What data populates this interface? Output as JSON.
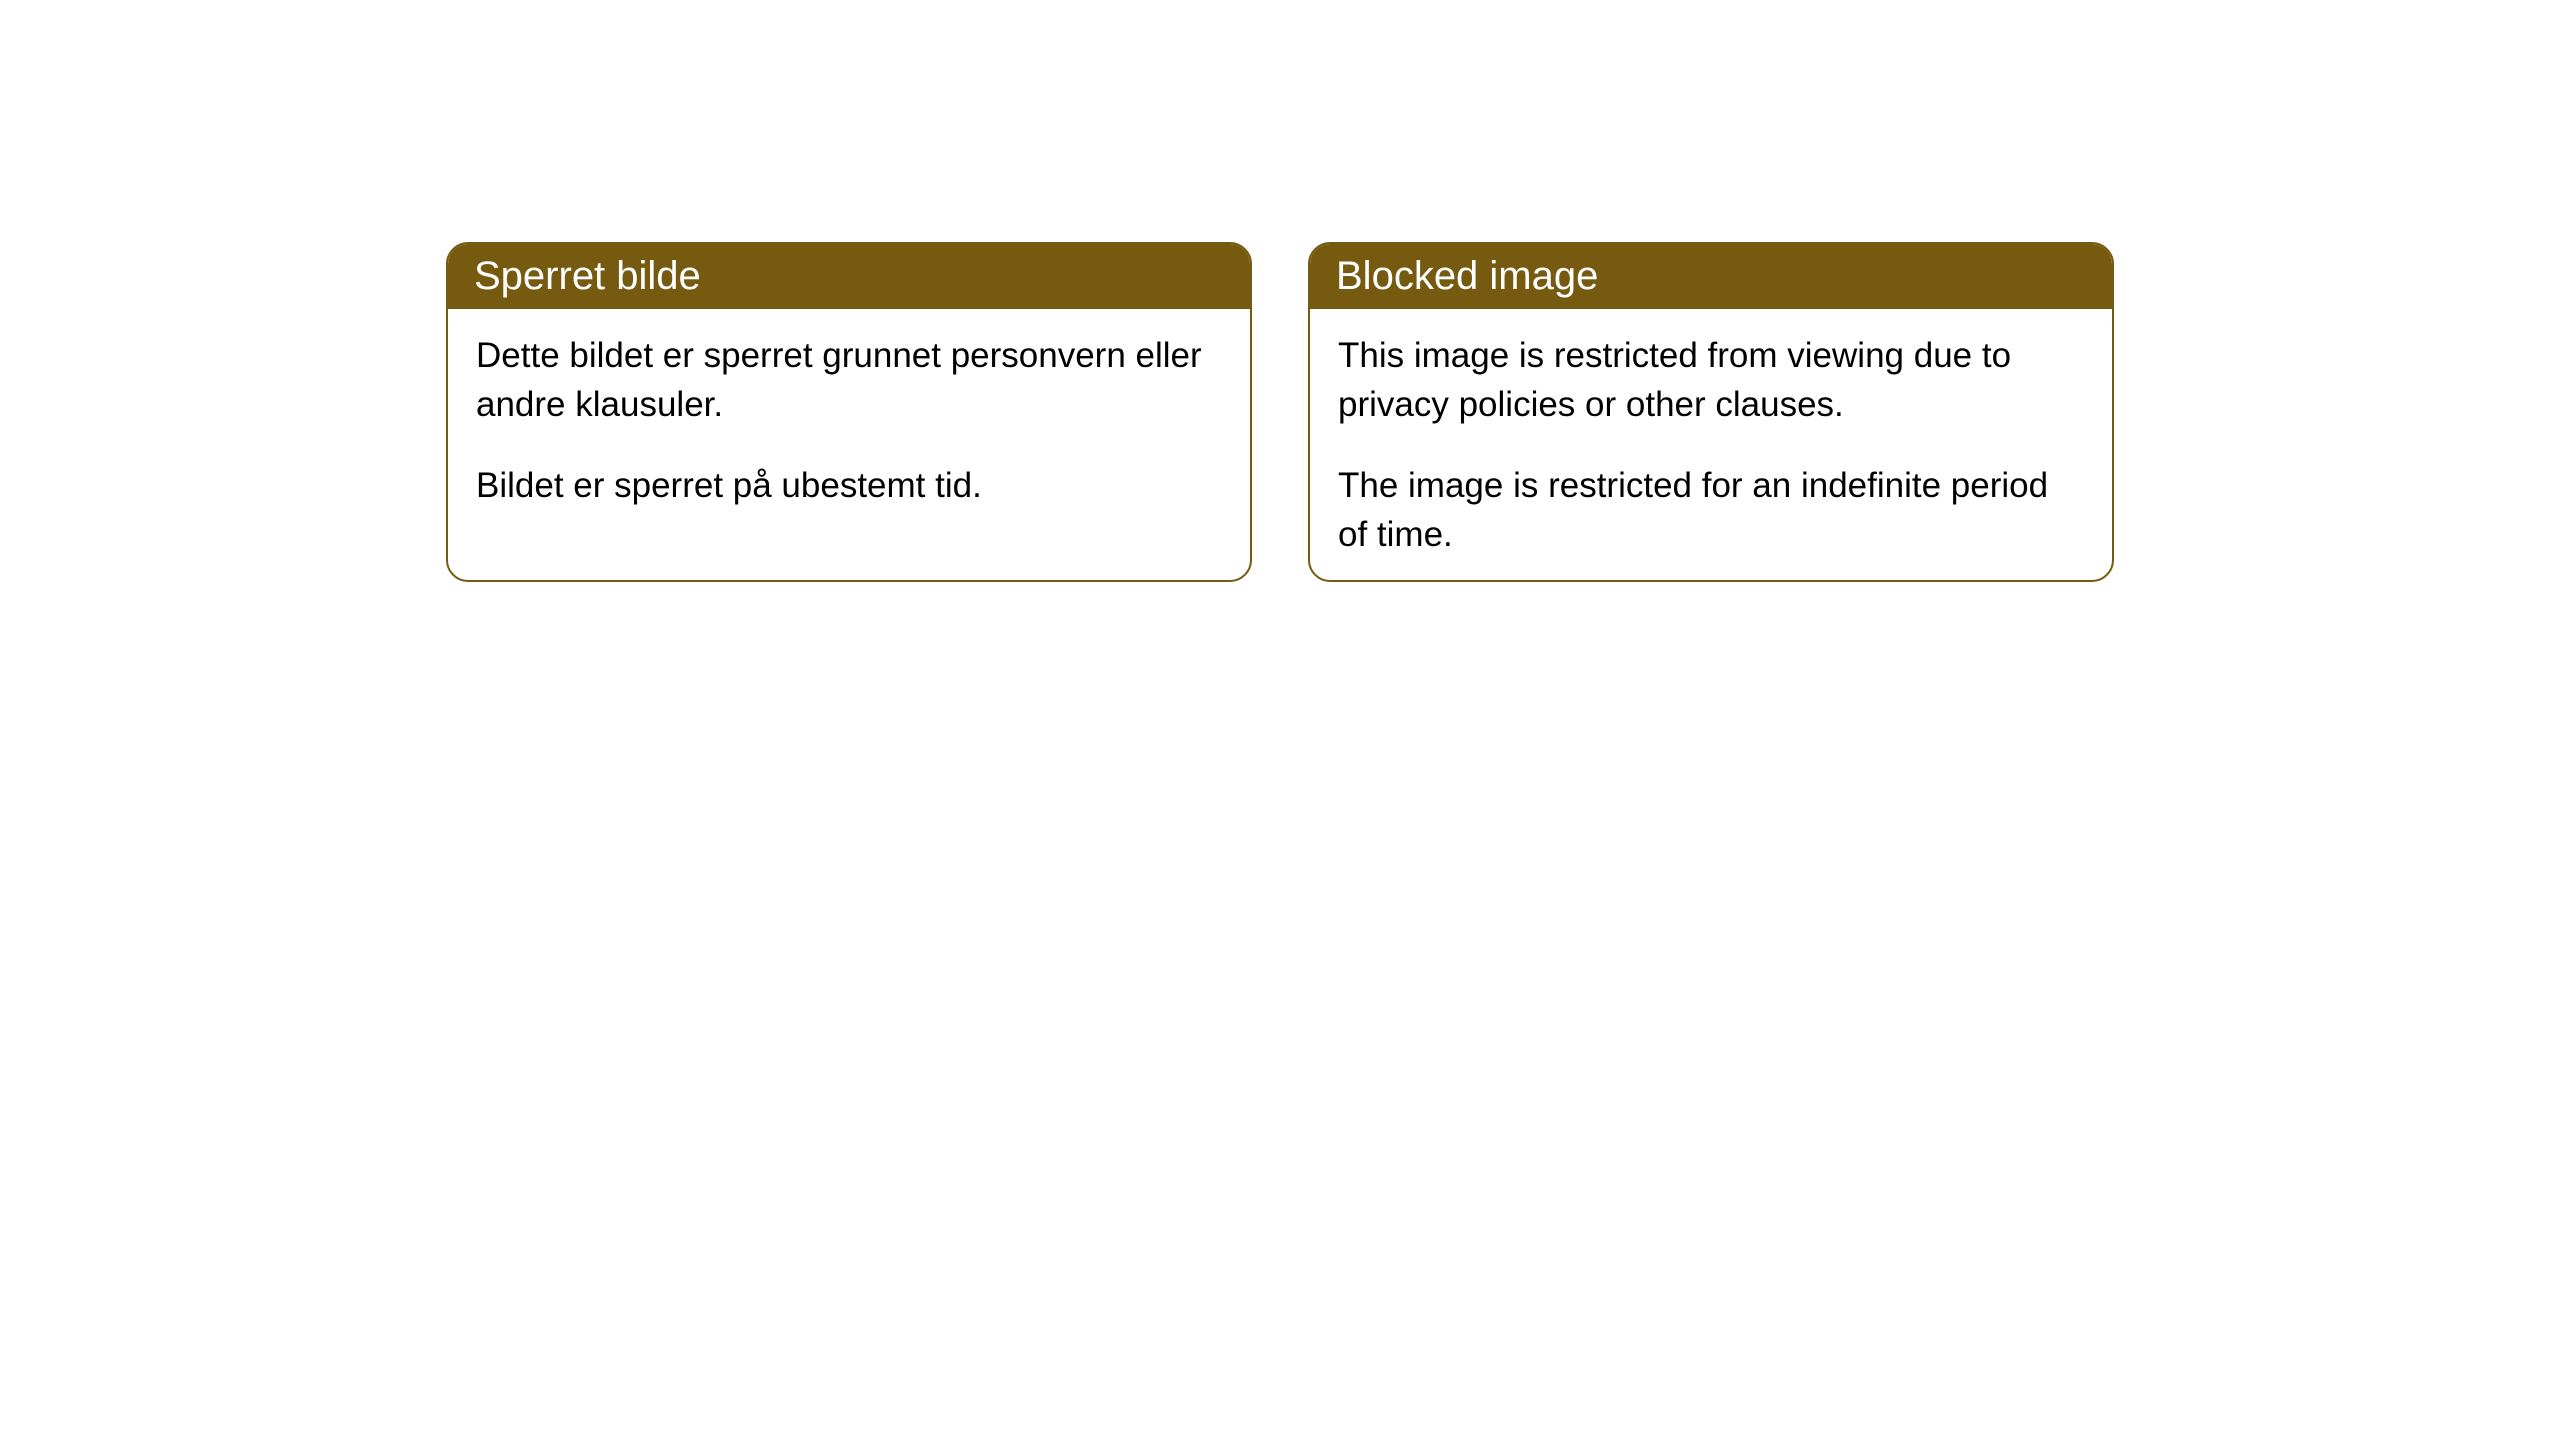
{
  "cards": [
    {
      "title": "Sperret bilde",
      "paragraph1": "Dette bildet er sperret grunnet personvern eller andre klausuler.",
      "paragraph2": "Bildet er sperret på ubestemt tid."
    },
    {
      "title": "Blocked image",
      "paragraph1": "This image is restricted from viewing due to privacy policies or other clauses.",
      "paragraph2": "The image is restricted for an indefinite period of time."
    }
  ],
  "styling": {
    "header_bg_color": "#755a10",
    "header_text_color": "#ffffff",
    "body_bg_color": "#ffffff",
    "body_text_color": "#000000",
    "border_color": "#755a10",
    "border_radius": 22,
    "header_font_size": 40,
    "body_font_size": 35
  }
}
